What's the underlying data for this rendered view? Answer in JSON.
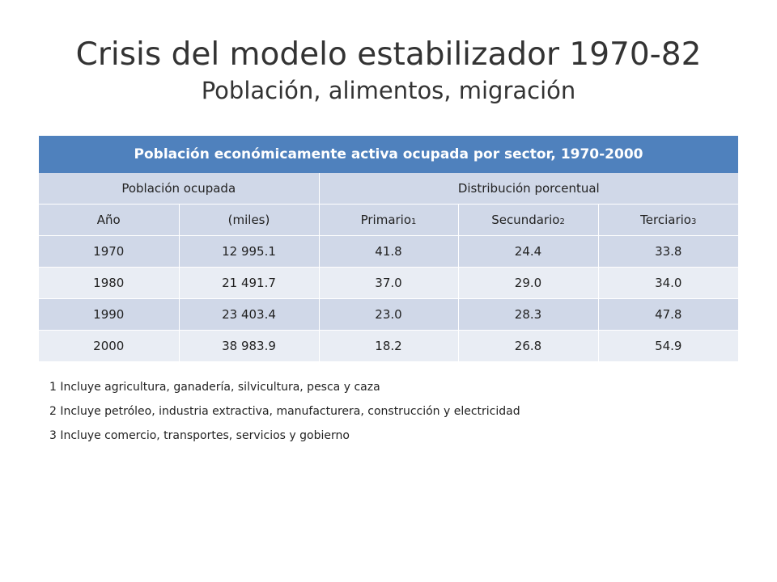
{
  "slide": {
    "title": "Crisis del modelo estabilizador 1970-82",
    "subtitle": "Población, alimentos, migración"
  },
  "table": {
    "caption": "Población económicamente activa ocupada por sector,  1970-2000",
    "group_headers": [
      "Población ocupada",
      "Distribución porcentual"
    ],
    "columns": [
      {
        "label": "Año",
        "sup": ""
      },
      {
        "label": "(miles)",
        "sup": ""
      },
      {
        "label": "Primario",
        "sup": "1"
      },
      {
        "label": "Secundario",
        "sup": "2"
      },
      {
        "label": "Terciario",
        "sup": "3"
      }
    ],
    "rows": [
      [
        "1970",
        "12 995.1",
        "41.8",
        "24.4",
        "33.8"
      ],
      [
        "1980",
        "21 491.7",
        "37.0",
        "29.0",
        "34.0"
      ],
      [
        "1990",
        "23 403.4",
        "23.0",
        "28.3",
        "47.8"
      ],
      [
        "2000",
        "38 983.9",
        "18.2",
        "26.8",
        "54.9"
      ]
    ]
  },
  "footnotes": [
    "1 Incluye agricultura, ganadería, silvicultura, pesca y caza",
    "2 Incluye petróleo, industria extractiva, manufacturera, construcción y electricidad",
    "3 Incluye comercio, transportes, servicios y gobierno"
  ],
  "colors": {
    "header": "#4f81bd",
    "band_dark": "#d0d8e8",
    "band_light": "#e9edf4"
  }
}
